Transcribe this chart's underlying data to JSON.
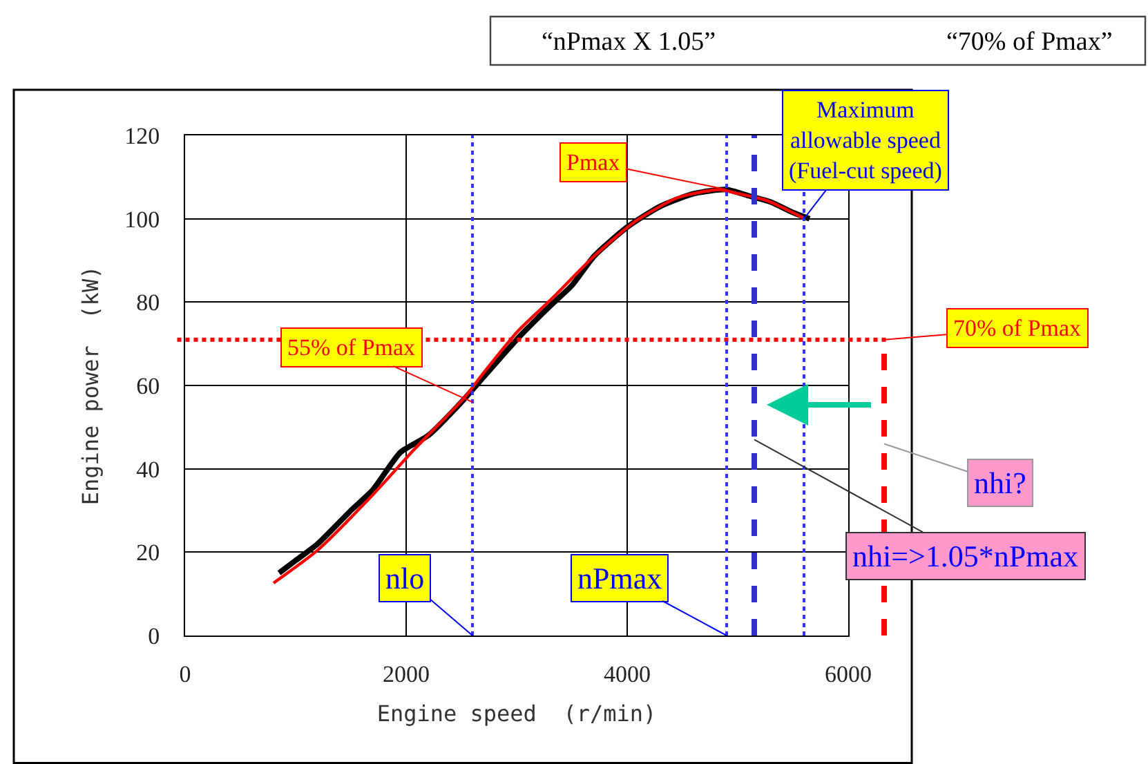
{
  "chart_data": {
    "type": "line",
    "xlabel": "Engine speed  (r/min)",
    "ylabel": "Engine power  (kW)",
    "xlim": [
      0,
      6000
    ],
    "xticks": [
      0,
      2000,
      4000,
      6000
    ],
    "ylim": [
      0,
      120
    ],
    "yticks": [
      0,
      20,
      40,
      60,
      80,
      100,
      120
    ],
    "grid": true,
    "marker": "none",
    "line_style": "solid",
    "series": [
      {
        "color": "#000000",
        "x": [
          850,
          1000,
          1200,
          1500,
          1700,
          1950,
          2200,
          2500,
          2700,
          3000,
          3300,
          3500,
          3700,
          4000,
          4300,
          4600,
          4900,
          5100,
          5300,
          5500,
          5650
        ],
        "values": [
          15,
          18,
          22,
          30,
          35,
          44,
          48,
          56,
          62,
          71,
          79,
          84,
          91,
          98,
          103,
          106,
          107,
          105.5,
          104,
          101.5,
          100
        ]
      },
      {
        "color": "#ff0000",
        "x": [
          800,
          1200,
          1700,
          2075,
          2525,
          2700,
          3010,
          3325,
          3700,
          4075,
          4450,
          4825,
          5010,
          5260,
          5610
        ],
        "values": [
          12.6,
          20.5,
          33.8,
          44.7,
          57,
          63,
          73,
          81,
          91,
          99.4,
          105,
          107,
          106,
          104.4,
          100
        ]
      }
    ],
    "ref_lines": [
      {
        "axis": "y",
        "value": 71,
        "color": "#ff0000",
        "line_style": "dotted"
      },
      {
        "axis": "x",
        "value": 2600,
        "color": "#3333ff",
        "line_style": "dotted"
      },
      {
        "axis": "x",
        "value": 4900,
        "color": "#3333ff",
        "line_style": "dotted"
      },
      {
        "axis": "x",
        "value": 5600,
        "color": "#3333ff",
        "line_style": "dotted"
      },
      {
        "axis": "x",
        "value": 5150,
        "color": "#3333cc",
        "line_style": "dashed"
      },
      {
        "axis": "x",
        "value": 6325,
        "color": "#ff0000",
        "line_style": "dashed"
      }
    ],
    "annotations": [
      {
        "text": "Pmax",
        "x": 4900,
        "y": 107
      },
      {
        "text": "Maximum\nallowable speed\n(Fuel-cut speed)",
        "x": 5600,
        "y": 100
      },
      {
        "text": "55% of Pmax",
        "x": 2600,
        "y": 56
      },
      {
        "text": "70% of Pmax",
        "x": 6325,
        "y": 71
      },
      {
        "text": "nlo",
        "x": 2600,
        "y": 0
      },
      {
        "text": "nPmax",
        "x": 4900,
        "y": 0
      },
      {
        "text": "nhi?",
        "x": 6325,
        "y": 46
      },
      {
        "text": "nhi=>1.05*nPmax",
        "x": 5150,
        "y": 47
      },
      "“nPmax X 1.05”",
      "“70% of Pmax”"
    ]
  }
}
